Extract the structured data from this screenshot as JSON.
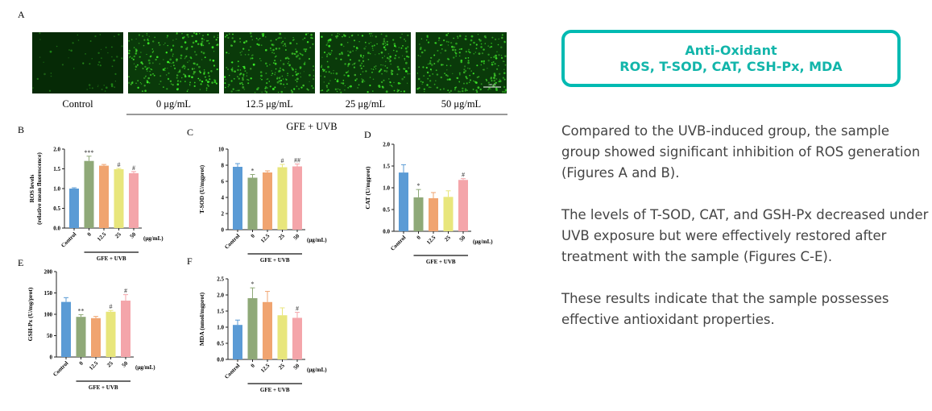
{
  "figure": {
    "panel_a_label": "A",
    "micrograph_labels": [
      "Control",
      "0 μg/mL",
      "12.5 μg/mL",
      "25 μg/mL",
      "50 μg/mL"
    ],
    "group_label": "GFE + UVB",
    "scale_bar_label": "200 μm"
  },
  "chart_data": [
    {
      "panel": "B",
      "type": "bar",
      "categories": [
        "Control",
        "0",
        "12.5",
        "25",
        "50"
      ],
      "unit": "(μg/mL)",
      "group_label": "GFE + UVB",
      "ylabel": [
        "ROS levels",
        "(relative mean fluorescence)"
      ],
      "ylim": [
        0,
        2
      ],
      "yticks": [
        "0.0",
        "0.5",
        "1.0",
        "1.5",
        "2.0"
      ],
      "values": [
        1.0,
        1.7,
        1.58,
        1.49,
        1.39
      ],
      "errors": [
        0.02,
        0.12,
        0.03,
        0.02,
        0.04
      ],
      "annotations": [
        "",
        "***",
        "",
        "#",
        "#"
      ]
    },
    {
      "panel": "C",
      "type": "bar",
      "categories": [
        "Control",
        "0",
        "12.5",
        "25",
        "50"
      ],
      "unit": "(μg/mL)",
      "group_label": "GFE + UVB",
      "ylabel": [
        "T-SOD (U/mgprot)"
      ],
      "ylim": [
        0,
        10
      ],
      "yticks": [
        "0",
        "2",
        "4",
        "6",
        "8",
        "10"
      ],
      "values": [
        7.8,
        6.45,
        7.1,
        7.75,
        7.85
      ],
      "errors": [
        0.4,
        0.4,
        0.2,
        0.35,
        0.3
      ],
      "annotations": [
        "",
        "*",
        "",
        "#",
        "##"
      ]
    },
    {
      "panel": "D",
      "type": "bar",
      "categories": [
        "Control",
        "0",
        "12.5",
        "25",
        "50"
      ],
      "unit": "(μg/mL)",
      "group_label": "GFE + UVB",
      "ylabel": [
        "CAT (U/mgprot)"
      ],
      "ylim": [
        0,
        2
      ],
      "yticks": [
        "0.0",
        "0.5",
        "1.0",
        "1.5",
        "2.0"
      ],
      "values": [
        1.35,
        0.78,
        0.76,
        0.79,
        1.18
      ],
      "errors": [
        0.18,
        0.18,
        0.13,
        0.14,
        0.03
      ],
      "annotations": [
        "",
        "*",
        "",
        "",
        "#"
      ]
    },
    {
      "panel": "E",
      "type": "bar",
      "categories": [
        "Control",
        "0",
        "12.5",
        "25",
        "50"
      ],
      "unit": "(μg/mL)",
      "group_label": "GFE + UVB",
      "ylabel": [
        "GSH-Px (U/mg/prot)"
      ],
      "ylim": [
        0,
        200
      ],
      "yticks": [
        "0",
        "50",
        "100",
        "150",
        "200"
      ],
      "values": [
        129,
        94,
        91,
        106,
        132
      ],
      "errors": [
        10,
        5,
        4,
        3,
        14
      ],
      "annotations": [
        "",
        "**",
        "",
        "#",
        "#"
      ]
    },
    {
      "panel": "F",
      "type": "bar",
      "categories": [
        "Control",
        "0",
        "12.5",
        "25",
        "50"
      ],
      "unit": "(μg/mL)",
      "group_label": "GFE + UVB",
      "ylabel": [
        "MDA (nmol/mgprot)"
      ],
      "ylim": [
        0,
        2.5
      ],
      "yticks": [
        "0.0",
        "0.5",
        "1.0",
        "1.5",
        "2.0",
        "2.5"
      ],
      "values": [
        1.07,
        1.9,
        1.78,
        1.37,
        1.29
      ],
      "errors": [
        0.15,
        0.32,
        0.33,
        0.23,
        0.17
      ],
      "annotations": [
        "",
        "*",
        "",
        "",
        "#"
      ]
    }
  ],
  "colors": {
    "bars": [
      "#5b9bd5",
      "#8fa978",
      "#f0a470",
      "#e8e67c",
      "#f4a5aa"
    ],
    "accent": "#00bab2"
  },
  "card": {
    "title": "Anti-Oxidant",
    "subtitle": "ROS, T-SOD, CAT, CSH-Px, MDA"
  },
  "paragraphs": [
    "Compared to the UVB-induced group, the sample group showed significant inhibition of ROS generation (Figures A and B).",
    "The levels of T-SOD, CAT, and GSH-Px decreased under UVB exposure but were effectively restored after treatment with the sample (Figures C-E).",
    "These results indicate that the sample possesses effective antioxidant properties."
  ]
}
